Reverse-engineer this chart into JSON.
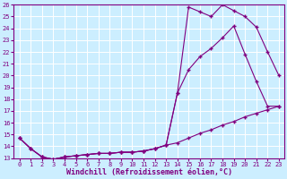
{
  "xlabel": "Windchill (Refroidissement éolien,°C)",
  "bg_color": "#cceeff",
  "line_color": "#800080",
  "grid_color": "#ffffff",
  "xlim": [
    -0.5,
    23.5
  ],
  "ylim": [
    13,
    26
  ],
  "xticks": [
    0,
    1,
    2,
    3,
    4,
    5,
    6,
    7,
    8,
    9,
    10,
    11,
    12,
    13,
    14,
    15,
    16,
    17,
    18,
    19,
    20,
    21,
    22,
    23
  ],
  "yticks": [
    13,
    14,
    15,
    16,
    17,
    18,
    19,
    20,
    21,
    22,
    23,
    24,
    25,
    26
  ],
  "line1_x": [
    0,
    1,
    2,
    3,
    4,
    5,
    6,
    7,
    8,
    9,
    10,
    11,
    12,
    13,
    14,
    15,
    16,
    17,
    18,
    19,
    20,
    21,
    22,
    23
  ],
  "line1_y": [
    14.7,
    13.8,
    13.1,
    12.9,
    13.1,
    13.2,
    13.3,
    13.4,
    13.4,
    13.5,
    13.5,
    13.6,
    13.8,
    14.1,
    18.5,
    25.8,
    25.4,
    25.0,
    26.0,
    25.5,
    25.0,
    24.1,
    22.0,
    20.0
  ],
  "line2_x": [
    0,
    1,
    2,
    3,
    4,
    5,
    6,
    7,
    8,
    9,
    10,
    11,
    12,
    13,
    14,
    15,
    16,
    17,
    18,
    19,
    20,
    21,
    22,
    23
  ],
  "line2_y": [
    14.7,
    13.8,
    13.1,
    12.9,
    13.1,
    13.2,
    13.3,
    13.4,
    13.4,
    13.5,
    13.5,
    13.6,
    13.8,
    14.1,
    18.5,
    20.5,
    21.6,
    22.3,
    23.2,
    24.2,
    21.8,
    19.5,
    17.4,
    17.4
  ],
  "line3_x": [
    0,
    1,
    2,
    3,
    4,
    5,
    6,
    7,
    8,
    9,
    10,
    11,
    12,
    13,
    14,
    15,
    16,
    17,
    18,
    19,
    20,
    21,
    22,
    23
  ],
  "line3_y": [
    14.7,
    13.8,
    13.1,
    12.9,
    13.1,
    13.2,
    13.3,
    13.4,
    13.4,
    13.5,
    13.5,
    13.6,
    13.8,
    14.1,
    14.3,
    14.7,
    15.1,
    15.4,
    15.8,
    16.1,
    16.5,
    16.8,
    17.1,
    17.4
  ],
  "marker": "+",
  "markersize": 3,
  "linewidth": 0.8,
  "tick_fontsize": 5,
  "label_fontsize": 6
}
